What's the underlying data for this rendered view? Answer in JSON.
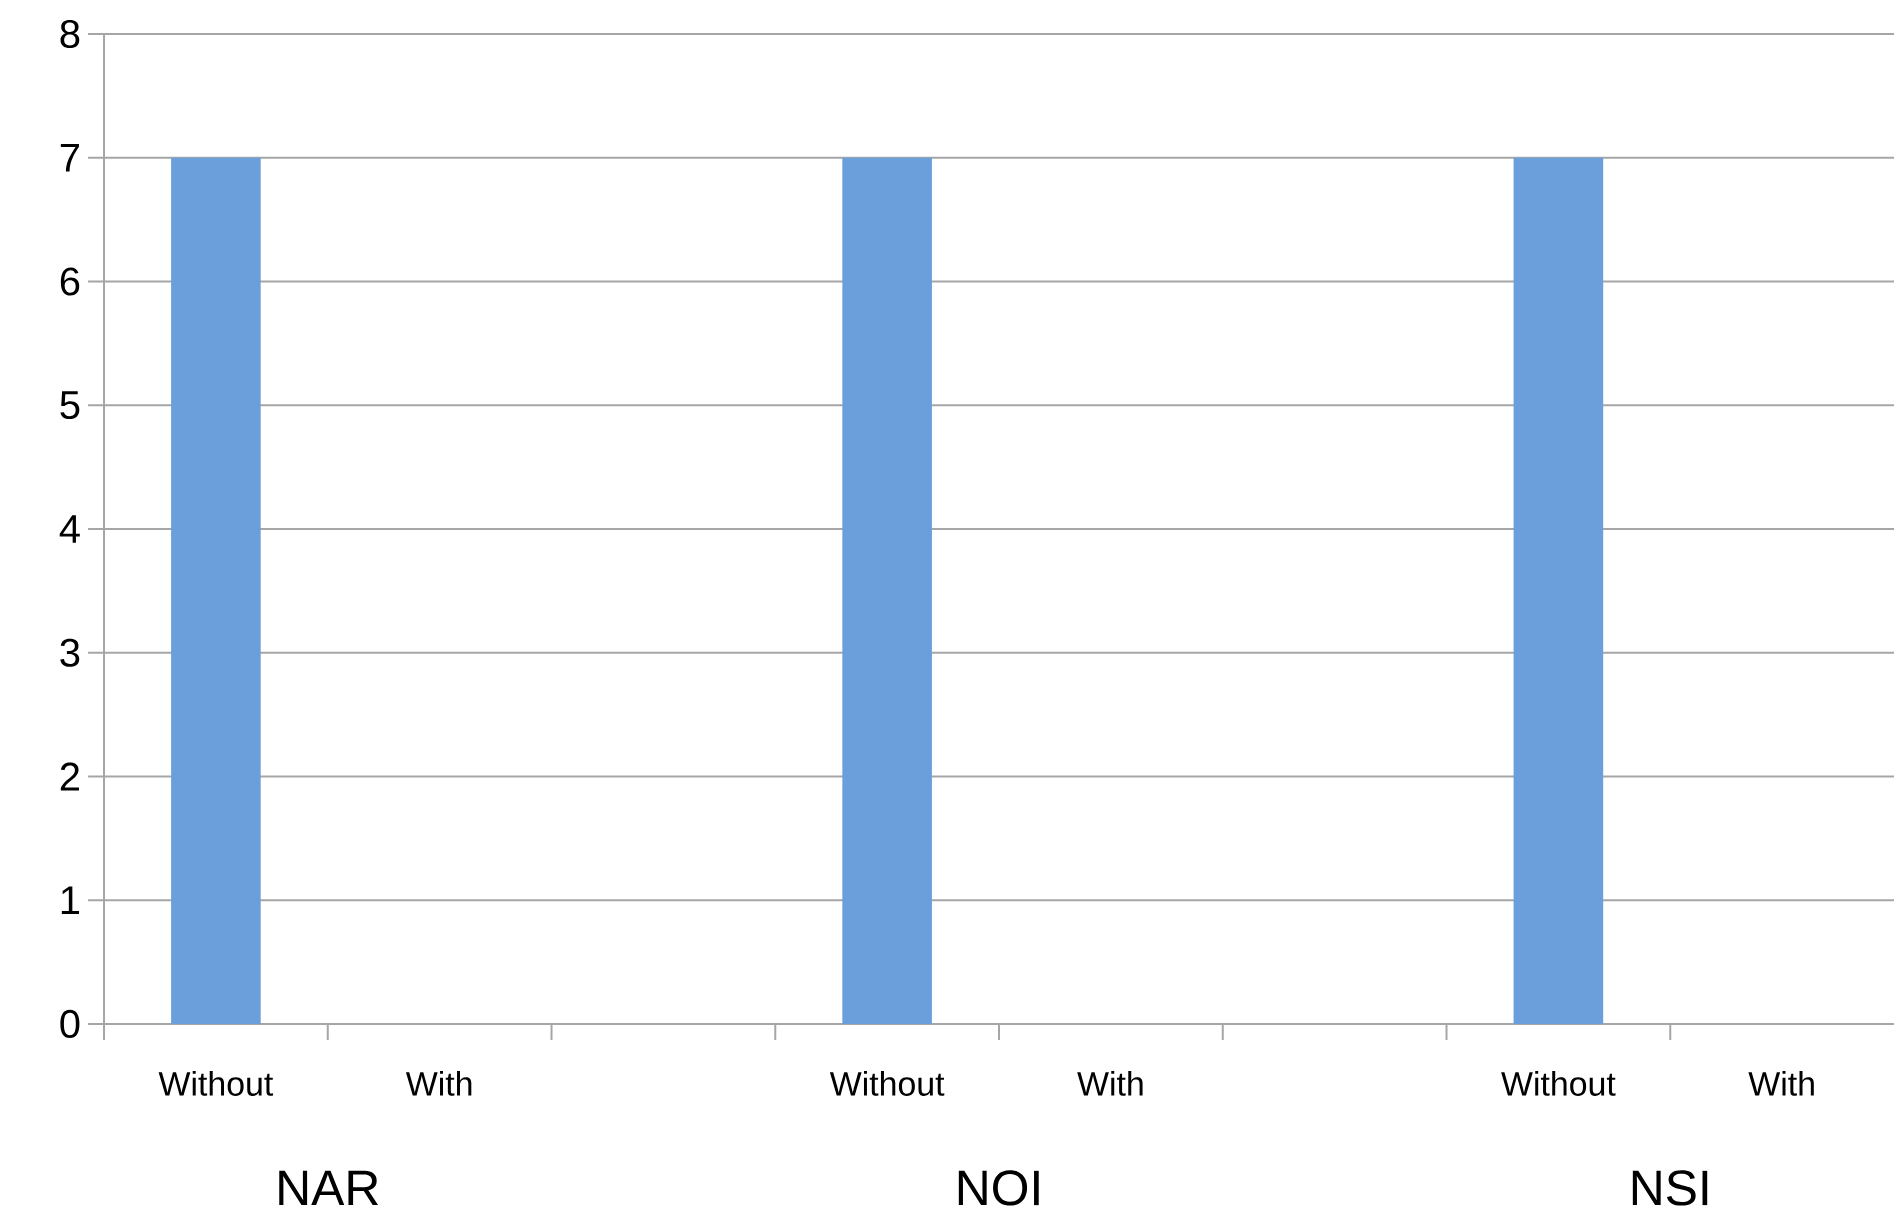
{
  "chart_data": {
    "type": "bar",
    "categories": [
      "Without",
      "With",
      null,
      "Without",
      "With",
      null,
      "Without",
      "With"
    ],
    "values": [
      7,
      0,
      null,
      7,
      0,
      null,
      7,
      0
    ],
    "color": "#6a9fdc",
    "ylim": [
      0,
      8
    ],
    "yticks": [
      0,
      1,
      2,
      3,
      4,
      5,
      6,
      7,
      8
    ],
    "grid": "y",
    "annotations": [
      "NAR",
      "NOI",
      "NSI"
    ]
  }
}
